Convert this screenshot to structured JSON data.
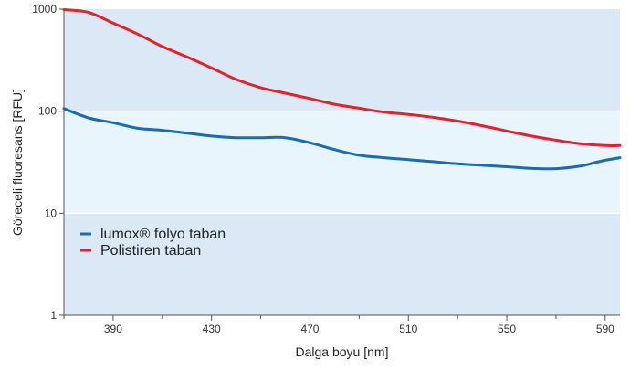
{
  "chart_data": {
    "type": "line",
    "xlabel": "Dalga boyu [nm]",
    "ylabel": "Göreceli fluoresans [RFU]",
    "xlim": [
      370,
      596
    ],
    "ylim": [
      1,
      1000
    ],
    "y_scale": "log",
    "x_ticks": [
      390,
      430,
      470,
      510,
      550,
      590
    ],
    "x_minor_ticks": [
      370,
      410,
      450,
      490,
      530,
      570
    ],
    "y_ticks": [
      1,
      10,
      100,
      1000
    ],
    "y_tick_labels": [
      "1",
      "10",
      "100",
      "1000"
    ],
    "grid": false,
    "legend_position": "lower-left",
    "band_colors": [
      "#dbe8f6",
      "#e9f5fc"
    ],
    "series": [
      {
        "name": "lumox® folyo taban",
        "color": "#1a6bb5",
        "x": [
          370,
          380,
          390,
          400,
          410,
          420,
          430,
          440,
          450,
          460,
          470,
          480,
          490,
          500,
          510,
          520,
          530,
          540,
          550,
          560,
          570,
          580,
          585,
          590,
          596
        ],
        "y": [
          106,
          86,
          77,
          68,
          65,
          61,
          57,
          55,
          55,
          55,
          49,
          42,
          37,
          35,
          33.5,
          32,
          30.5,
          29.5,
          28.5,
          27.5,
          27.3,
          29,
          31,
          33,
          35
        ]
      },
      {
        "name": "Polistiren taban",
        "color": "#e0232e",
        "x": [
          370,
          380,
          390,
          400,
          410,
          420,
          430,
          440,
          450,
          460,
          470,
          480,
          490,
          500,
          510,
          520,
          530,
          540,
          550,
          560,
          570,
          580,
          590,
          596
        ],
        "y": [
          990,
          930,
          730,
          570,
          430,
          340,
          265,
          205,
          170,
          150,
          133,
          117,
          107,
          98,
          93,
          87,
          80,
          72,
          64,
          57,
          52,
          48,
          46,
          46
        ]
      }
    ]
  }
}
